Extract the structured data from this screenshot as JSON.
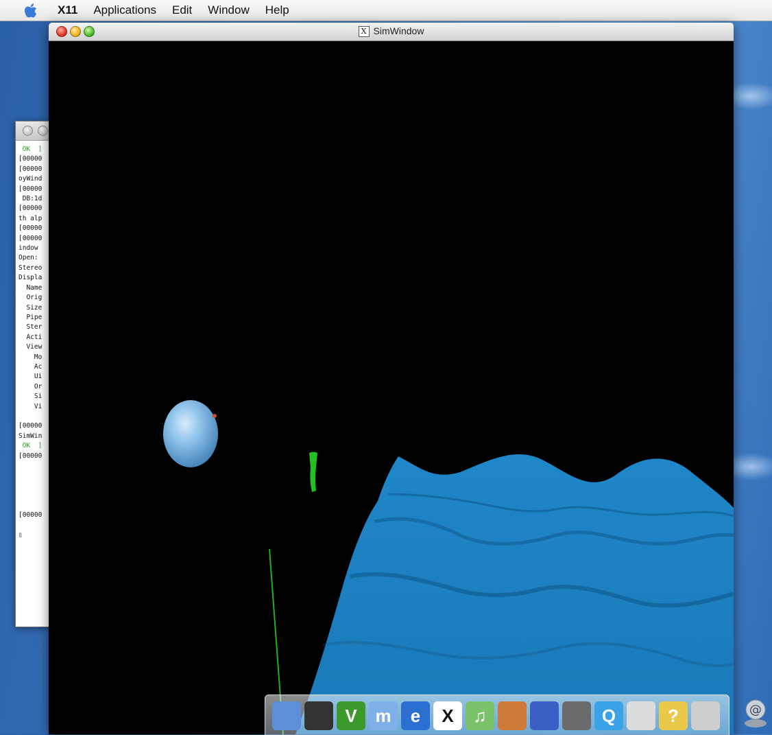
{
  "menubar": {
    "items": [
      "X11",
      "Applications",
      "Edit",
      "Window",
      "Help"
    ]
  },
  "sim_window": {
    "title": "SimWindow",
    "title_icon": "X"
  },
  "terminal": {
    "lines": [
      {
        "text": " OK  ]",
        "ok": true
      },
      {
        "text": "[00000"
      },
      {
        "text": "[00000"
      },
      {
        "text": "oyWind"
      },
      {
        "text": "[00000"
      },
      {
        "text": " DB:1d"
      },
      {
        "text": "[00000"
      },
      {
        "text": "th alp"
      },
      {
        "text": "[00000"
      },
      {
        "text": "[00000"
      },
      {
        "text": "indow"
      },
      {
        "text": "Open:"
      },
      {
        "text": "Stereo"
      },
      {
        "text": "Displa"
      },
      {
        "text": "  Name"
      },
      {
        "text": "  Orig"
      },
      {
        "text": "  Size"
      },
      {
        "text": "  Pipe"
      },
      {
        "text": "  Ster"
      },
      {
        "text": "  Acti"
      },
      {
        "text": "  View"
      },
      {
        "text": "    Mo"
      },
      {
        "text": "    Ac"
      },
      {
        "text": "    Ui"
      },
      {
        "text": "    Or"
      },
      {
        "text": "    Si"
      },
      {
        "text": "    Vi"
      },
      {
        "text": ""
      },
      {
        "text": "[00000"
      },
      {
        "text": "SimWin"
      },
      {
        "text": " OK  ]",
        "ok": true
      },
      {
        "text": "[00000"
      },
      {
        "text": ""
      },
      {
        "text": ""
      },
      {
        "text": ""
      },
      {
        "text": ""
      },
      {
        "text": ""
      },
      {
        "text": "[00000"
      },
      {
        "text": ""
      },
      {
        "text": "▯"
      }
    ]
  },
  "dock": {
    "items": [
      {
        "name": "finder-icon",
        "label": "",
        "bg": "#5b8fd8"
      },
      {
        "name": "terminal-icon",
        "label": "",
        "bg": "#333333"
      },
      {
        "name": "vim-icon",
        "label": "V",
        "bg": "#3c9a2d"
      },
      {
        "name": "m-app-icon",
        "label": "m",
        "bg": "#7fb0ea"
      },
      {
        "name": "internet-explorer-icon",
        "label": "e",
        "bg": "#2b6fd0"
      },
      {
        "name": "x11-icon",
        "label": "X",
        "bg": "#ffffff"
      },
      {
        "name": "itunes-icon",
        "label": "♫",
        "bg": "#7ac36a"
      },
      {
        "name": "iphoto-icon",
        "label": "",
        "bg": "#d07a3a"
      },
      {
        "name": "imovie-icon",
        "label": "",
        "bg": "#3b5fc4"
      },
      {
        "name": "sherlock-icon",
        "label": "",
        "bg": "#6b6b6b"
      },
      {
        "name": "quicktime-icon",
        "label": "Q",
        "bg": "#3aa2e6"
      },
      {
        "name": "mac-icon",
        "label": "",
        "bg": "#dcdcdc"
      },
      {
        "name": "help-viewer-icon",
        "label": "?",
        "bg": "#e9c84a"
      },
      {
        "name": "preview-icon",
        "label": "",
        "bg": "#cfcfcf"
      }
    ]
  }
}
